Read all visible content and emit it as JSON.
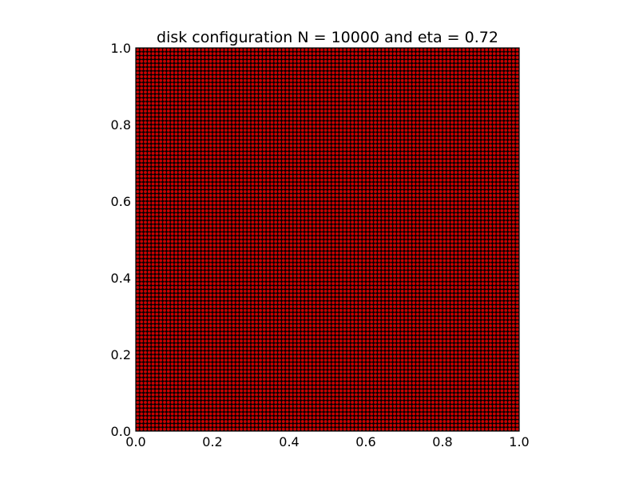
{
  "chart_data": {
    "type": "scatter",
    "title": "disk configuration N = 10000 and eta = 0.72",
    "xlabel": "",
    "ylabel": "",
    "xlim": [
      0.0,
      1.0
    ],
    "ylim": [
      0.0,
      1.0
    ],
    "xticks": [
      "0.0",
      "0.2",
      "0.4",
      "0.6",
      "0.8",
      "1.0"
    ],
    "yticks": [
      "0.0",
      "0.2",
      "0.4",
      "0.6",
      "0.8",
      "1.0"
    ],
    "grid": false,
    "legend": "none",
    "n_disks": 10000,
    "eta": 0.72,
    "lattice": "square 100 x 100",
    "disk_fill_color": "#cc0000",
    "disk_edge_color": "#000000"
  }
}
